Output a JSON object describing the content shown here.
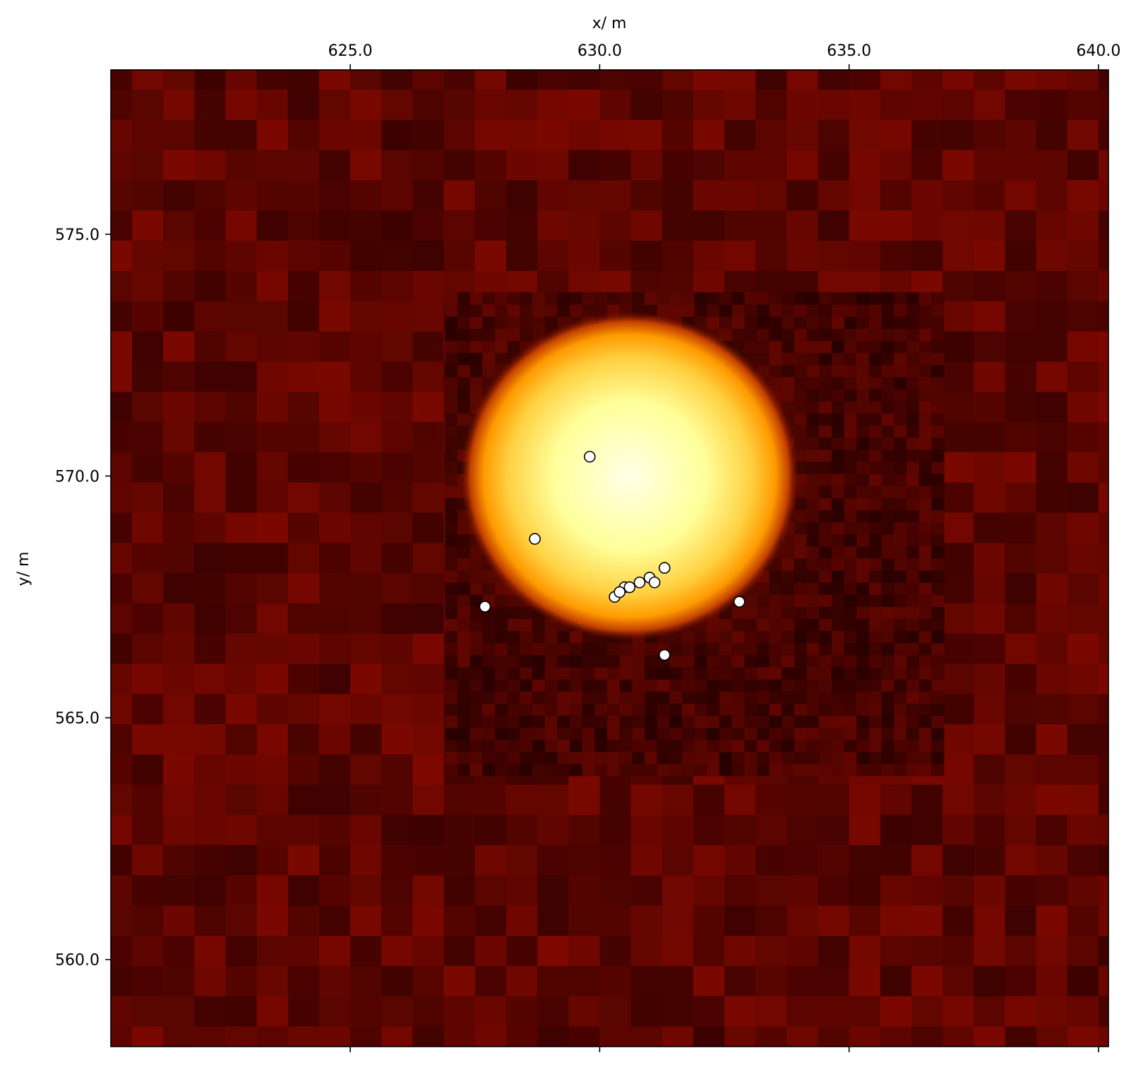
{
  "chart_data": {
    "type": "heatmap",
    "title": "",
    "xlabel": "x/ m",
    "ylabel": "y/ m",
    "xlim": [
      620.2,
      640.2
    ],
    "ylim": [
      558.2,
      578.4
    ],
    "x_axis_position": "top",
    "x_ticks": [
      625.0,
      630.0,
      635.0,
      640.0
    ],
    "x_tick_labels": [
      "625.0",
      "630.0",
      "635.0",
      "640.0"
    ],
    "y_ticks": [
      560.0,
      565.0,
      570.0,
      575.0
    ],
    "y_tick_labels": [
      "560.0",
      "565.0",
      "570.0",
      "575.0"
    ],
    "grid": false,
    "colormap": "afmhot",
    "colors": {
      "background_field": "#5a0000",
      "hot_core": "#ffffd0",
      "marker_fill": "#ffffff",
      "marker_edge": "#000000"
    },
    "hotspot": {
      "center_x": 630.6,
      "center_y": 570.0,
      "radius_x": 3.4,
      "radius_y": 3.4
    },
    "hi_res_region": {
      "x": [
        626.9,
        636.9
      ],
      "y": [
        563.8,
        573.8
      ]
    },
    "points": [
      {
        "x": 629.8,
        "y": 570.4
      },
      {
        "x": 628.7,
        "y": 568.7
      },
      {
        "x": 627.7,
        "y": 567.3
      },
      {
        "x": 630.3,
        "y": 567.5
      },
      {
        "x": 630.5,
        "y": 567.7
      },
      {
        "x": 630.4,
        "y": 567.6
      },
      {
        "x": 630.6,
        "y": 567.7
      },
      {
        "x": 630.8,
        "y": 567.8
      },
      {
        "x": 631.0,
        "y": 567.9
      },
      {
        "x": 631.1,
        "y": 567.8
      },
      {
        "x": 631.3,
        "y": 568.1
      },
      {
        "x": 632.8,
        "y": 567.4
      },
      {
        "x": 631.3,
        "y": 566.3
      }
    ]
  }
}
